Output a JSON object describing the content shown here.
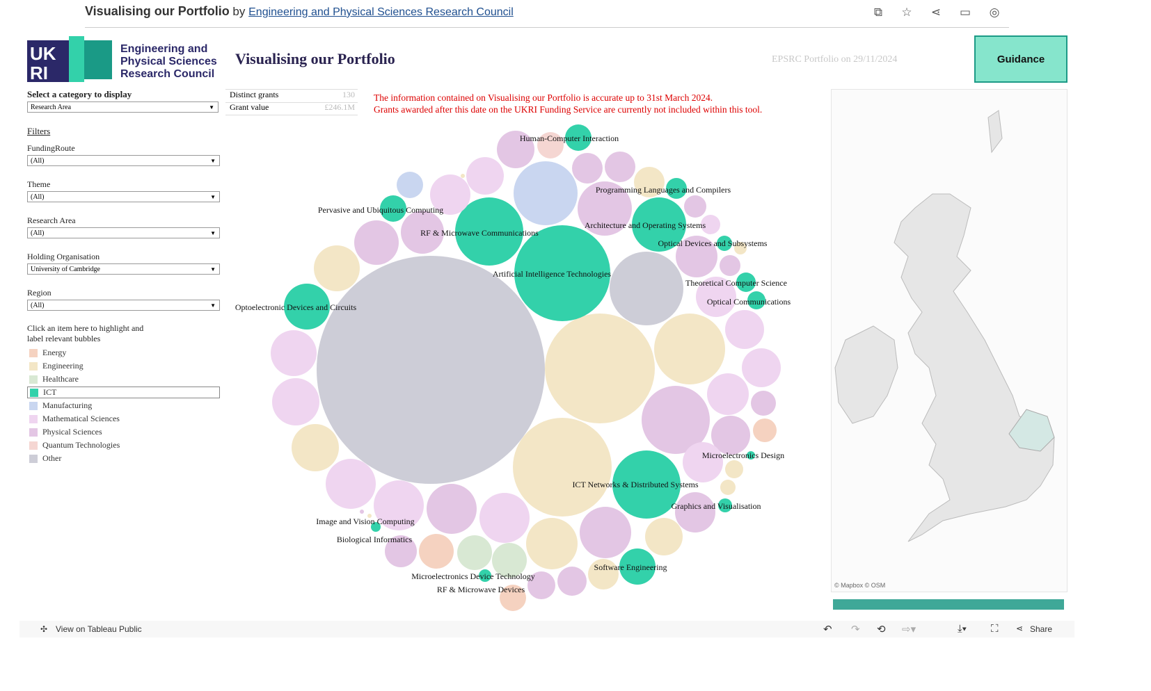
{
  "topbar": {
    "title": "Visualising our Portfolio",
    "by": "by",
    "author": "Engineering and Physical Sciences Research Council",
    "icons": [
      "copy-icon",
      "star-icon",
      "share-icon",
      "comment-icon",
      "user-icon"
    ]
  },
  "logo": {
    "mark": "UKRI",
    "line1": "Engineering and",
    "line2": "Physical Sciences",
    "line3": "Research Council"
  },
  "dashboard": {
    "title": "Visualising our Portfolio",
    "as_of": "EPSRC Portfolio on 29/11/2024",
    "guidance": "Guidance"
  },
  "sidebar": {
    "category_label": "Select a category to display",
    "category_value": "Research Area",
    "filters_heading": "Filters",
    "filters": [
      {
        "label": "FundingRoute",
        "value": "(All)"
      },
      {
        "label": "Theme",
        "value": "(All)"
      },
      {
        "label": "Research Area",
        "value": "(All)"
      },
      {
        "label": "Holding Organisation",
        "value": "University of Cambridge"
      },
      {
        "label": "Region",
        "value": "(All)"
      }
    ],
    "legend_hint": "Click an item here to highlight and label relevant bubbles",
    "legend": [
      {
        "label": "Energy",
        "color": "#f5d2c0"
      },
      {
        "label": "Engineering",
        "color": "#f3e6c6"
      },
      {
        "label": "Healthcare",
        "color": "#d8e8d3"
      },
      {
        "label": "ICT",
        "color": "#33d1aa",
        "selected": true
      },
      {
        "label": "Manufacturing",
        "color": "#c9d6f0"
      },
      {
        "label": "Mathematical Sciences",
        "color": "#efd5f0"
      },
      {
        "label": "Physical Sciences",
        "color": "#e3c6e4"
      },
      {
        "label": "Quantum Technologies",
        "color": "#f5d6d2"
      },
      {
        "label": "Other",
        "color": "#cdcdd7"
      }
    ]
  },
  "stats": [
    {
      "label": "Distinct grants",
      "value": "130"
    },
    {
      "label": "Grant value",
      "value": "£246.1M"
    }
  ],
  "notice": [
    "The information contained on Visualising our Portfolio is accurate up to 31st March 2024.",
    "Grants awarded after this date on the UKRI Funding Service are currently not included within this tool."
  ],
  "bubble_labels": [
    "Human-Computer Interaction",
    "Programming Languages and Compilers",
    "Pervasive and Ubiquitous Computing",
    "RF & Microwave Communications",
    "Architecture and Operating Systems",
    "Optical Devices and Subsystems",
    "Artificial Intelligence Technologies",
    "Theoretical Computer Science",
    "Optical Communications",
    "Optoelectronic Devices and Circuits",
    "Microelectronics Design",
    "ICT Networks & Distributed Systems",
    "Graphics and Visualisation",
    "Image and Vision Computing",
    "Biological Informatics",
    "Software Engineering",
    "Microelectronics Device Technology",
    "RF & Microwave Devices"
  ],
  "map": {
    "attribution": "© Mapbox  © OSM"
  },
  "bottom": {
    "view": "View on Tableau Public",
    "share": "Share"
  }
}
